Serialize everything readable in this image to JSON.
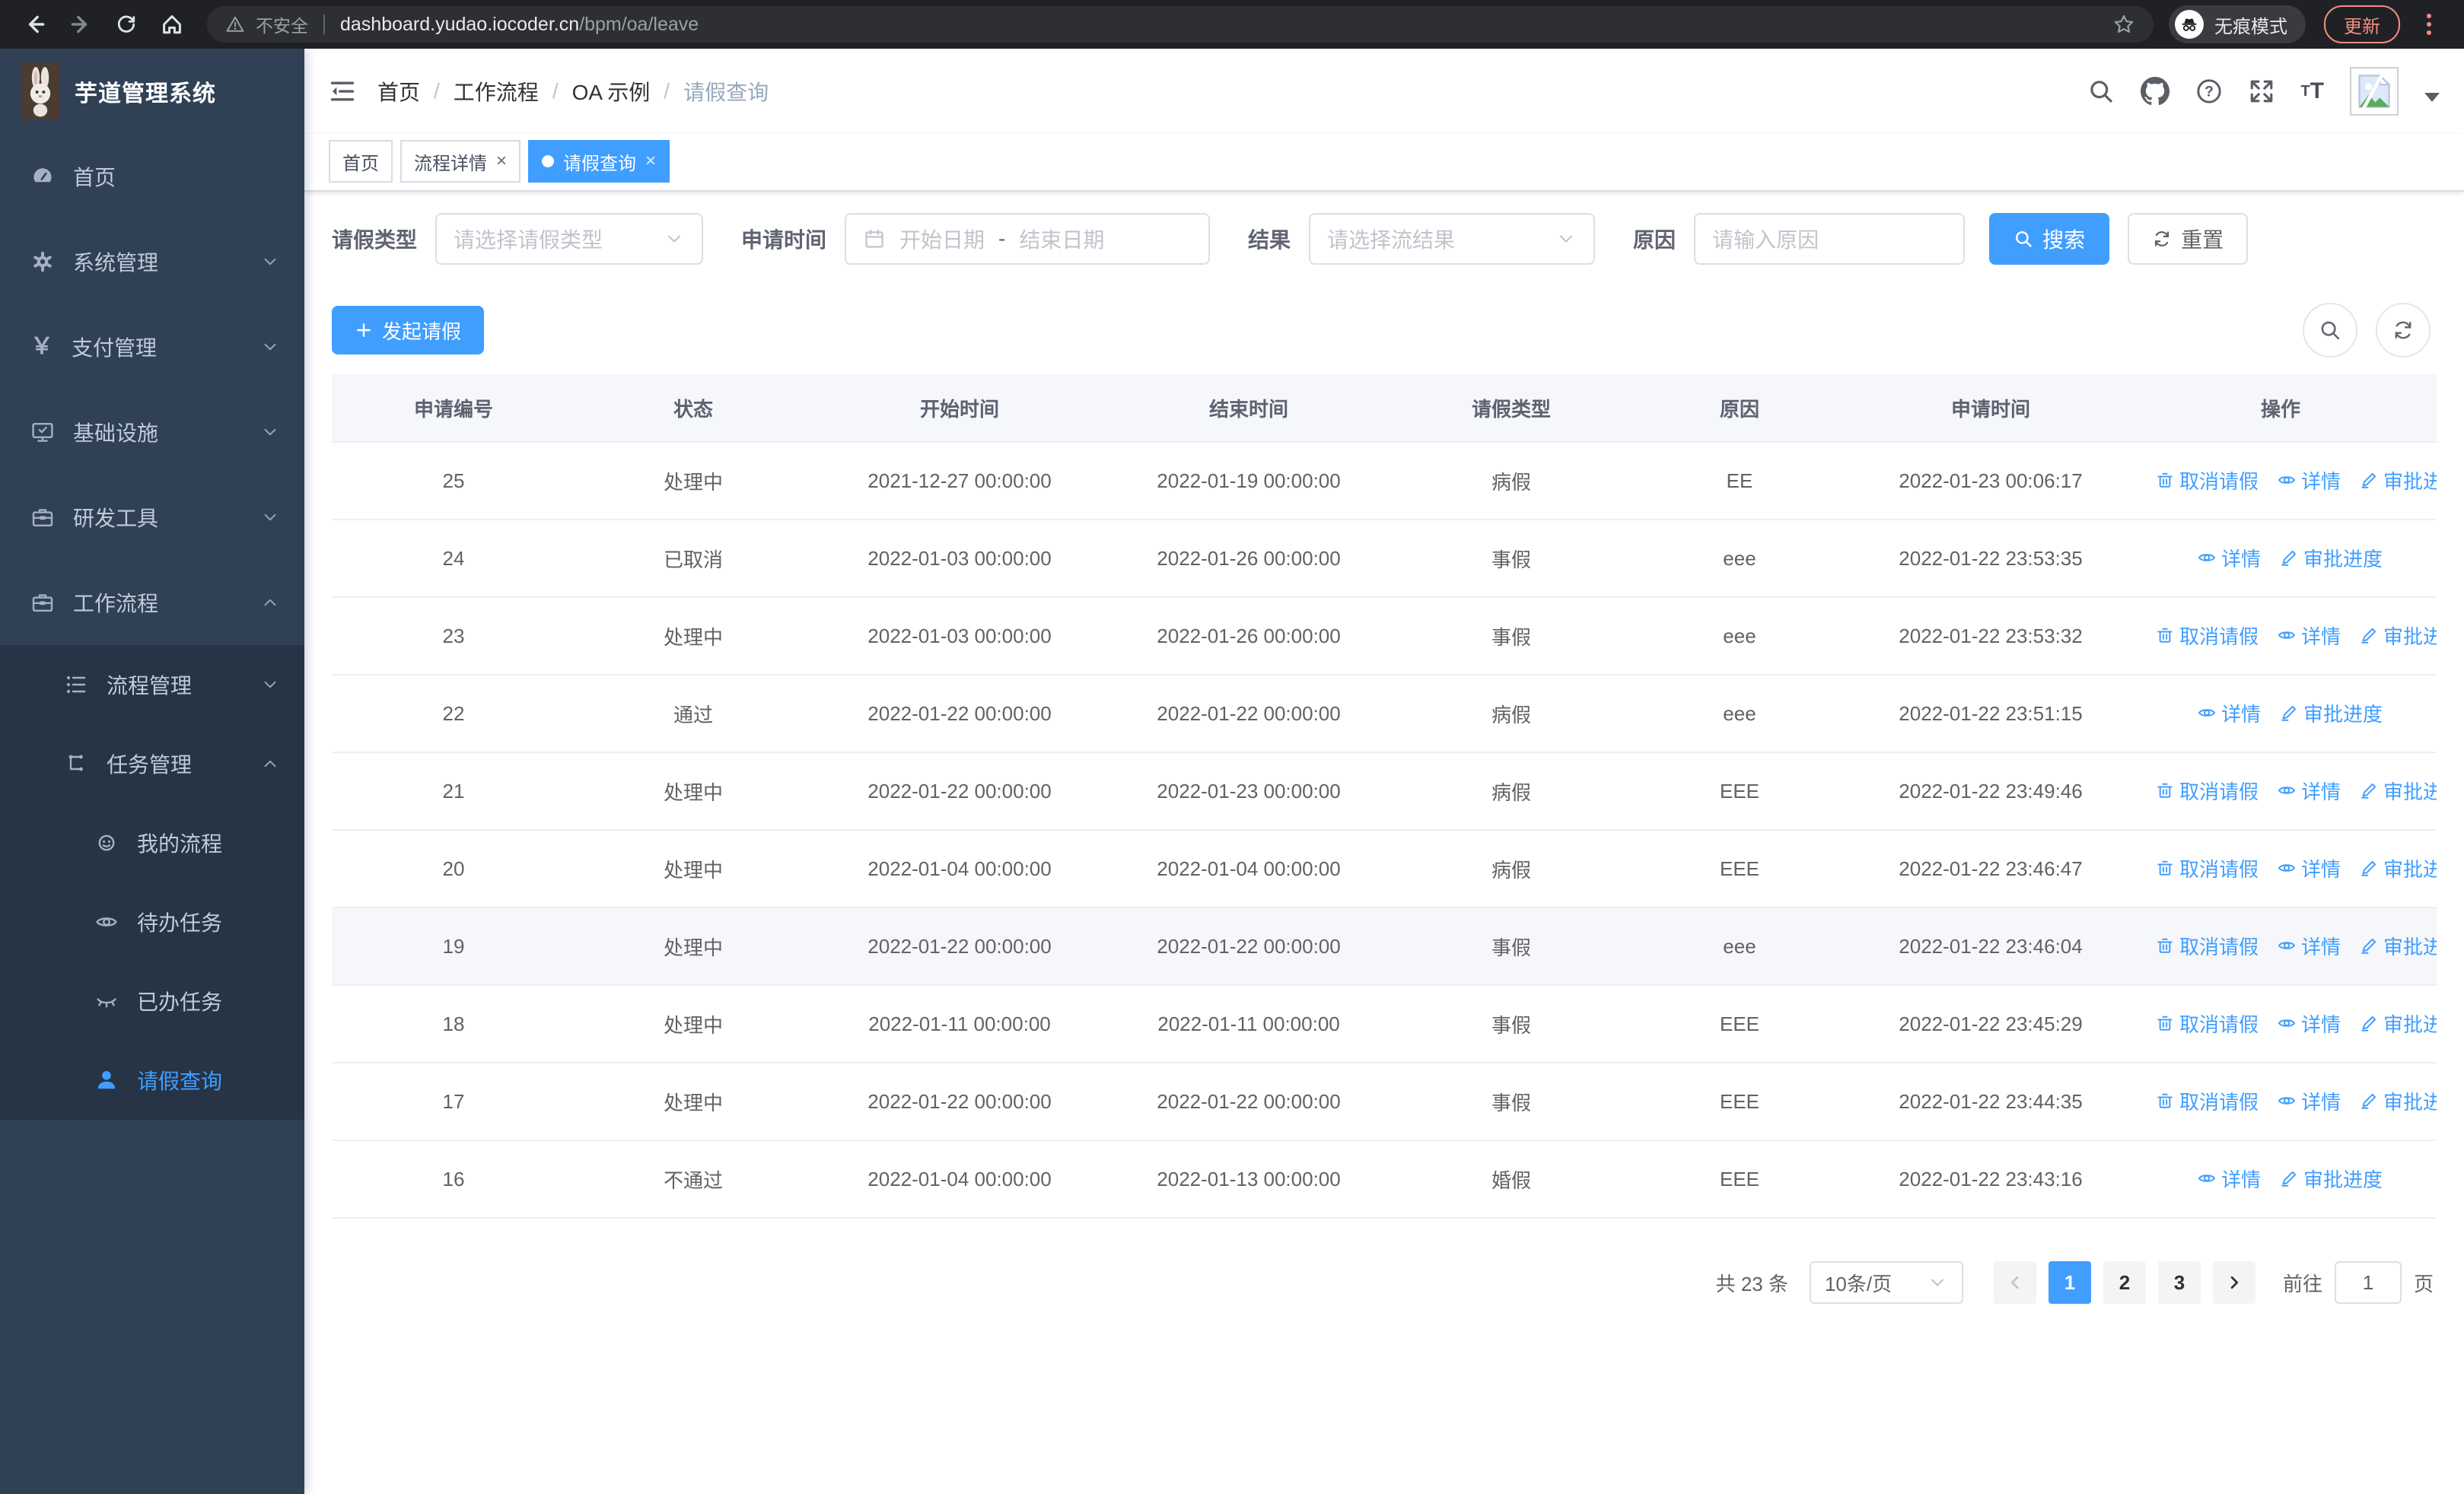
{
  "browser": {
    "security_label": "不安全",
    "url_host": "dashboard.yudao.iocoder.cn",
    "url_path": "/bpm/oa/leave",
    "incognito_label": "无痕模式",
    "update_label": "更新"
  },
  "sidebar": {
    "logo_title": "芋道管理系统",
    "items": [
      {
        "label": "首页",
        "icon": "dashboard-icon",
        "level": 1
      },
      {
        "label": "系统管理",
        "icon": "gear-icon",
        "level": 1,
        "chevron": "down"
      },
      {
        "label": "支付管理",
        "icon": "yen-icon",
        "level": 1,
        "chevron": "down"
      },
      {
        "label": "基础设施",
        "icon": "monitor-icon",
        "level": 1,
        "chevron": "down"
      },
      {
        "label": "研发工具",
        "icon": "toolbox-icon",
        "level": 1,
        "chevron": "down"
      },
      {
        "label": "工作流程",
        "icon": "briefcase-icon",
        "level": 1,
        "chevron": "up"
      },
      {
        "label": "流程管理",
        "icon": "list-icon",
        "level": 2,
        "chevron": "down",
        "sub": true
      },
      {
        "label": "任务管理",
        "icon": "tree-icon",
        "level": 2,
        "chevron": "up",
        "sub": true
      },
      {
        "label": "我的流程",
        "icon": "robot-icon",
        "level": 3,
        "sub": true
      },
      {
        "label": "待办任务",
        "icon": "eye-open-icon",
        "level": 3,
        "sub": true
      },
      {
        "label": "已办任务",
        "icon": "eye-closed-icon",
        "level": 3,
        "sub": true
      },
      {
        "label": "请假查询",
        "icon": "user-icon",
        "level": 3,
        "sub": true,
        "active": true
      }
    ]
  },
  "header": {
    "breadcrumb": [
      {
        "label": "首页"
      },
      {
        "label": "工作流程"
      },
      {
        "label": "OA 示例"
      },
      {
        "label": "请假查询",
        "muted": true
      }
    ]
  },
  "tabs": [
    {
      "label": "首页"
    },
    {
      "label": "流程详情",
      "closable": true
    },
    {
      "label": "请假查询",
      "closable": true,
      "active": true
    }
  ],
  "filters": {
    "leave_type_label": "请假类型",
    "leave_type_placeholder": "请选择请假类型",
    "apply_time_label": "申请时间",
    "start_date_placeholder": "开始日期",
    "range_separator": "-",
    "end_date_placeholder": "结束日期",
    "result_label": "结果",
    "result_placeholder": "请选择流结果",
    "reason_label": "原因",
    "reason_placeholder": "请输入原因",
    "search_label": "搜索",
    "reset_label": "重置"
  },
  "toolbar": {
    "create_label": "发起请假"
  },
  "table": {
    "columns": [
      "申请编号",
      "状态",
      "开始时间",
      "结束时间",
      "请假类型",
      "原因",
      "申请时间",
      "操作"
    ],
    "action_defs": {
      "cancel": {
        "label": "取消请假",
        "icon": "trash-icon"
      },
      "detail": {
        "label": "详情",
        "icon": "eye-icon"
      },
      "progress": {
        "label": "审批进度",
        "icon": "edit-icon"
      }
    },
    "rows": [
      {
        "id": "25",
        "status": "处理中",
        "start_time": "2021-12-27 00:00:00",
        "end_time": "2022-01-19 00:00:00",
        "leave_type": "病假",
        "reason": "EE",
        "apply_time": "2022-01-23 00:06:17",
        "actions": [
          "cancel",
          "detail",
          "progress"
        ],
        "highlighted": false
      },
      {
        "id": "24",
        "status": "已取消",
        "start_time": "2022-01-03 00:00:00",
        "end_time": "2022-01-26 00:00:00",
        "leave_type": "事假",
        "reason": "eee",
        "apply_time": "2022-01-22 23:53:35",
        "actions": [
          "detail",
          "progress"
        ],
        "highlighted": false
      },
      {
        "id": "23",
        "status": "处理中",
        "start_time": "2022-01-03 00:00:00",
        "end_time": "2022-01-26 00:00:00",
        "leave_type": "事假",
        "reason": "eee",
        "apply_time": "2022-01-22 23:53:32",
        "actions": [
          "cancel",
          "detail",
          "progress"
        ],
        "highlighted": false
      },
      {
        "id": "22",
        "status": "通过",
        "start_time": "2022-01-22 00:00:00",
        "end_time": "2022-01-22 00:00:00",
        "leave_type": "病假",
        "reason": "eee",
        "apply_time": "2022-01-22 23:51:15",
        "actions": [
          "detail",
          "progress"
        ],
        "highlighted": false
      },
      {
        "id": "21",
        "status": "处理中",
        "start_time": "2022-01-22 00:00:00",
        "end_time": "2022-01-23 00:00:00",
        "leave_type": "病假",
        "reason": "EEE",
        "apply_time": "2022-01-22 23:49:46",
        "actions": [
          "cancel",
          "detail",
          "progress"
        ],
        "highlighted": false
      },
      {
        "id": "20",
        "status": "处理中",
        "start_time": "2022-01-04 00:00:00",
        "end_time": "2022-01-04 00:00:00",
        "leave_type": "病假",
        "reason": "EEE",
        "apply_time": "2022-01-22 23:46:47",
        "actions": [
          "cancel",
          "detail",
          "progress"
        ],
        "highlighted": false
      },
      {
        "id": "19",
        "status": "处理中",
        "start_time": "2022-01-22 00:00:00",
        "end_time": "2022-01-22 00:00:00",
        "leave_type": "事假",
        "reason": "eee",
        "apply_time": "2022-01-22 23:46:04",
        "actions": [
          "cancel",
          "detail",
          "progress"
        ],
        "highlighted": true
      },
      {
        "id": "18",
        "status": "处理中",
        "start_time": "2022-01-11 00:00:00",
        "end_time": "2022-01-11 00:00:00",
        "leave_type": "事假",
        "reason": "EEE",
        "apply_time": "2022-01-22 23:45:29",
        "actions": [
          "cancel",
          "detail",
          "progress"
        ],
        "highlighted": false
      },
      {
        "id": "17",
        "status": "处理中",
        "start_time": "2022-01-22 00:00:00",
        "end_time": "2022-01-22 00:00:00",
        "leave_type": "事假",
        "reason": "EEE",
        "apply_time": "2022-01-22 23:44:35",
        "actions": [
          "cancel",
          "detail",
          "progress"
        ],
        "highlighted": false
      },
      {
        "id": "16",
        "status": "不通过",
        "start_time": "2022-01-04 00:00:00",
        "end_time": "2022-01-13 00:00:00",
        "leave_type": "婚假",
        "reason": "EEE",
        "apply_time": "2022-01-22 23:43:16",
        "actions": [
          "detail",
          "progress"
        ],
        "highlighted": false
      }
    ]
  },
  "pagination": {
    "total_label": "共 23 条",
    "page_size_label": "10条/页",
    "pages": [
      "1",
      "2",
      "3"
    ],
    "active_page": "1",
    "goto_label": "前往",
    "goto_value": "1",
    "page_unit_label": "页"
  }
}
